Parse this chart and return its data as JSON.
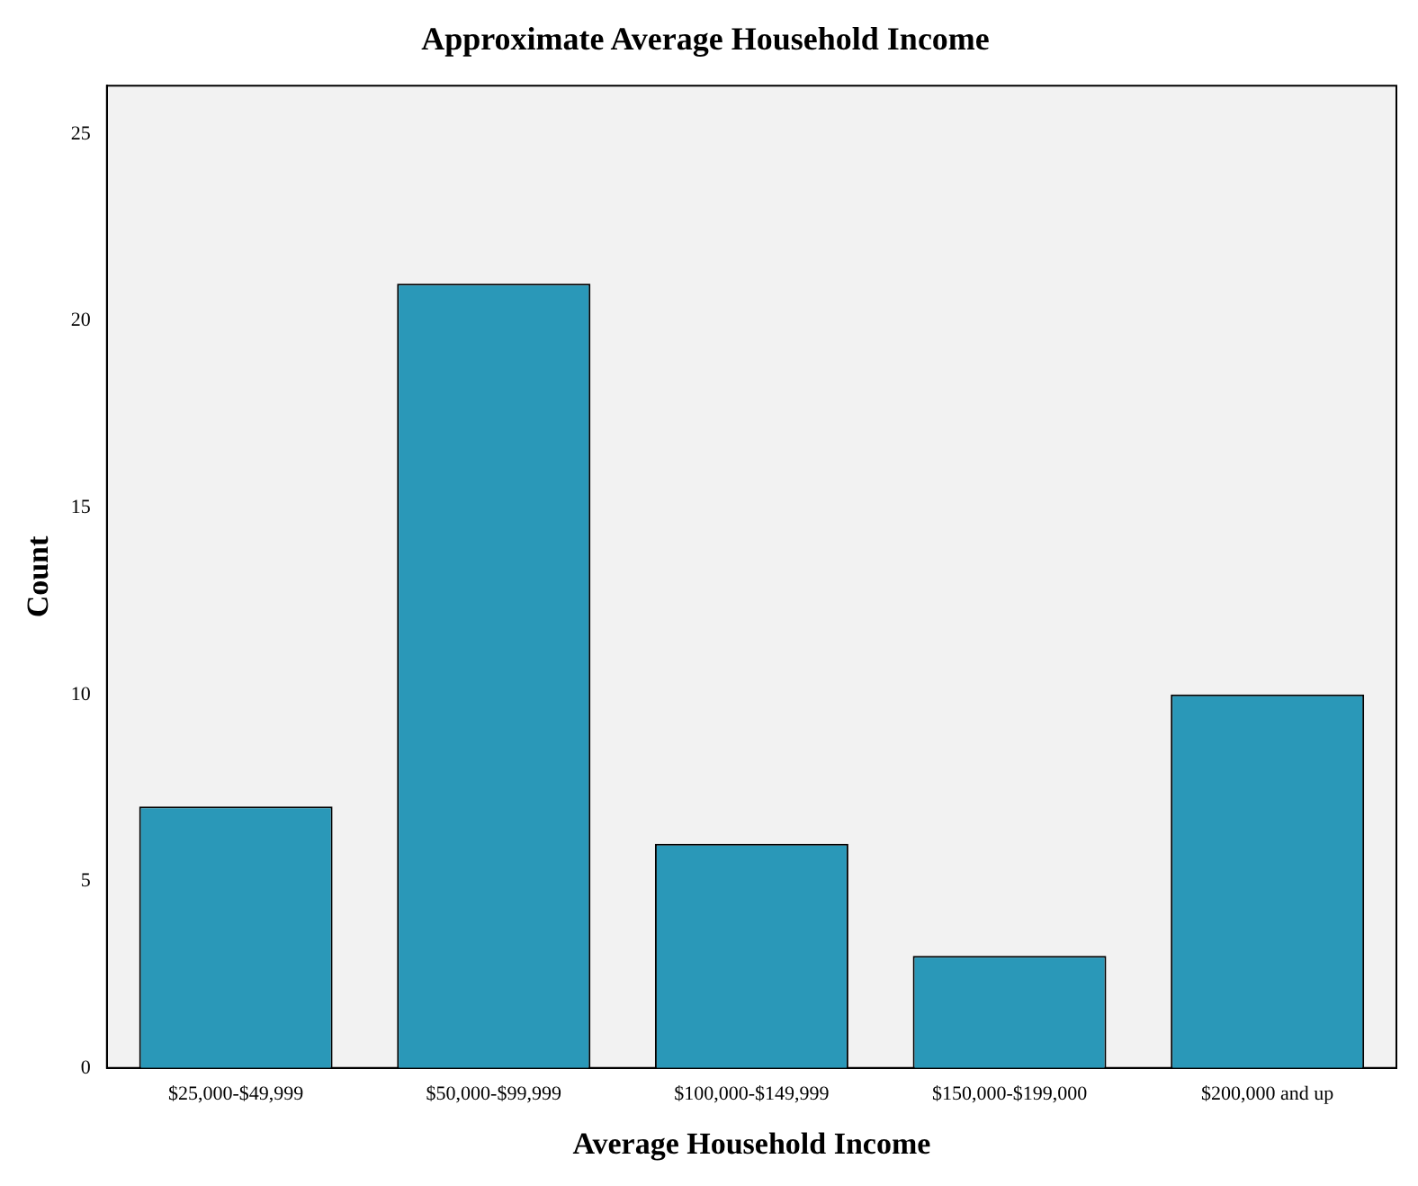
{
  "chart_data": {
    "type": "bar",
    "title": "Approximate Average Household Income",
    "xlabel": "Average Household Income",
    "ylabel": "Count",
    "categories": [
      "$25,000-$49,999",
      "$50,000-$99,999",
      "$100,000-$149,999",
      "$150,000-$199,000",
      "$200,000 and up"
    ],
    "values": [
      7,
      21,
      6,
      3,
      10
    ],
    "color": "#2a98b8",
    "ylim": [
      0,
      26.3
    ],
    "yticks": [
      0,
      5,
      10,
      15,
      20,
      25
    ],
    "grid": false,
    "legend": false
  }
}
